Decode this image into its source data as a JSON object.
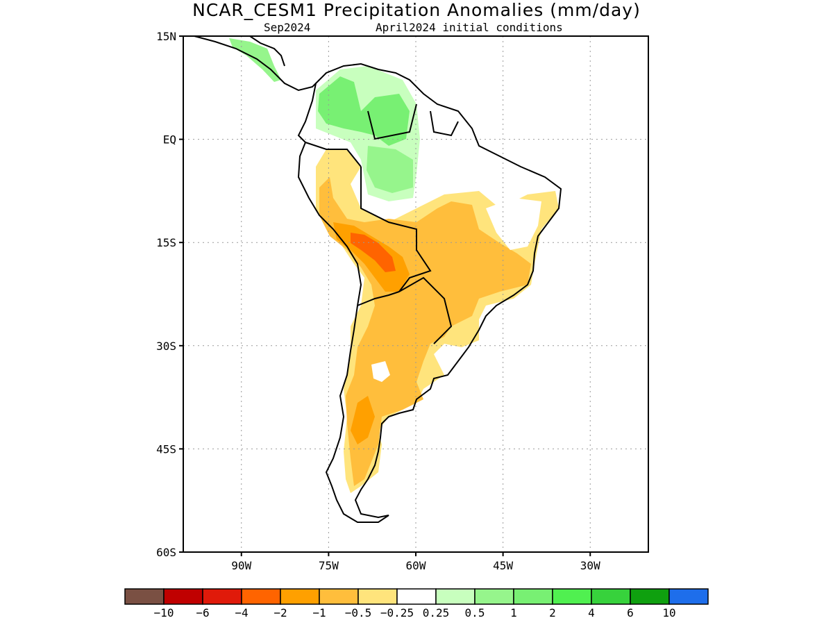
{
  "title": "NCAR_CESM1 Precipitation Anomalies (mm/day)",
  "subtitle_left": "Sep2024",
  "subtitle_right": "April2024 initial conditions",
  "map": {
    "lon_range": [
      -100,
      -20
    ],
    "lat_range": [
      -60,
      15
    ],
    "lat_ticks": [
      {
        "value": 15,
        "label": "15N"
      },
      {
        "value": 0,
        "label": "EQ"
      },
      {
        "value": -15,
        "label": "15S"
      },
      {
        "value": -30,
        "label": "30S"
      },
      {
        "value": -45,
        "label": "45S"
      },
      {
        "value": -60,
        "label": "60S"
      }
    ],
    "lon_ticks": [
      {
        "value": -90,
        "label": "90W"
      },
      {
        "value": -75,
        "label": "75W"
      },
      {
        "value": -60,
        "label": "60W"
      },
      {
        "value": -45,
        "label": "45W"
      },
      {
        "value": -30,
        "label": "30W"
      }
    ],
    "grid": "dotted"
  },
  "colorbar": {
    "colors": [
      "#7a5043",
      "#c00000",
      "#e01a0a",
      "#ff6400",
      "#ffa000",
      "#ffbe3c",
      "#ffe47c",
      "#ffffff",
      "#c8ffbe",
      "#96f58c",
      "#78f073",
      "#50f050",
      "#37d23c",
      "#0fa00f",
      "#1e6eeb"
    ],
    "labels": [
      "−10",
      "−6",
      "−4",
      "−2",
      "−1",
      "−0.5",
      "−0.25",
      "0.25",
      "0.5",
      "1",
      "2",
      "4",
      "6",
      "10"
    ]
  },
  "anomaly_regions": [
    {
      "name": "north-south-america-wet",
      "level": "1"
    },
    {
      "name": "western-amazon-wet",
      "level": "0.5"
    },
    {
      "name": "central-brazil-dry",
      "level": "-0.5"
    },
    {
      "name": "bolivia-paraguay-dry",
      "level": "-1"
    },
    {
      "name": "bolivian-andes-dry",
      "level": "-2"
    },
    {
      "name": "argentina-chile-dry",
      "level": "-1"
    }
  ]
}
